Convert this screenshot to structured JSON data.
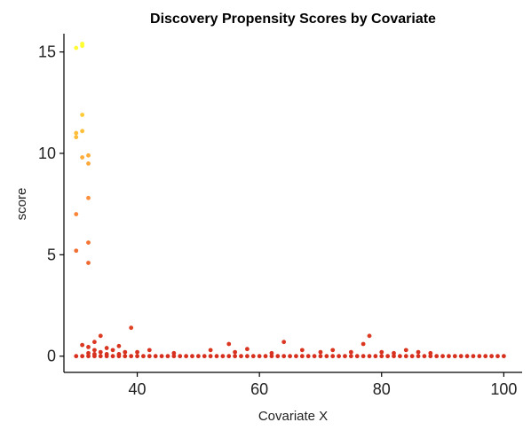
{
  "chart_data": {
    "type": "scatter",
    "title": "Discovery Propensity Scores by Covariate",
    "xlabel": "Covariate X",
    "ylabel": "score",
    "xlim": [
      28,
      103
    ],
    "ylim": [
      -0.8,
      15.9
    ],
    "x_ticks": [
      40,
      60,
      80,
      100
    ],
    "y_ticks": [
      0,
      5,
      10,
      15
    ],
    "grid": false,
    "legend": "none",
    "color_scale": {
      "low": "#d7301f",
      "mid": "#fd8d3c",
      "high": "#ffff33",
      "min": 0,
      "max": 15.4
    },
    "points": [
      {
        "x": 30,
        "y": 15.2
      },
      {
        "x": 31,
        "y": 15.3
      },
      {
        "x": 31,
        "y": 15.4
      },
      {
        "x": 31,
        "y": 11.9
      },
      {
        "x": 30,
        "y": 11.0
      },
      {
        "x": 30,
        "y": 10.8
      },
      {
        "x": 31,
        "y": 11.1
      },
      {
        "x": 31,
        "y": 9.8
      },
      {
        "x": 32,
        "y": 9.9
      },
      {
        "x": 32,
        "y": 9.5
      },
      {
        "x": 32,
        "y": 7.8
      },
      {
        "x": 30,
        "y": 7.0
      },
      {
        "x": 32,
        "y": 5.6
      },
      {
        "x": 30,
        "y": 5.2
      },
      {
        "x": 32,
        "y": 4.6
      },
      {
        "x": 39,
        "y": 1.4
      },
      {
        "x": 34,
        "y": 1.0
      },
      {
        "x": 78,
        "y": 1.0
      },
      {
        "x": 33,
        "y": 0.7
      },
      {
        "x": 55,
        "y": 0.6
      },
      {
        "x": 64,
        "y": 0.7
      },
      {
        "x": 77,
        "y": 0.6
      },
      {
        "x": 31,
        "y": 0.55
      },
      {
        "x": 37,
        "y": 0.5
      },
      {
        "x": 32,
        "y": 0.45
      },
      {
        "x": 35,
        "y": 0.4
      },
      {
        "x": 33,
        "y": 0.3
      },
      {
        "x": 36,
        "y": 0.3
      },
      {
        "x": 42,
        "y": 0.3
      },
      {
        "x": 52,
        "y": 0.3
      },
      {
        "x": 58,
        "y": 0.35
      },
      {
        "x": 67,
        "y": 0.3
      },
      {
        "x": 72,
        "y": 0.3
      },
      {
        "x": 84,
        "y": 0.3
      },
      {
        "x": 34,
        "y": 0.2
      },
      {
        "x": 38,
        "y": 0.2
      },
      {
        "x": 40,
        "y": 0.2
      },
      {
        "x": 46,
        "y": 0.15
      },
      {
        "x": 56,
        "y": 0.2
      },
      {
        "x": 62,
        "y": 0.15
      },
      {
        "x": 70,
        "y": 0.2
      },
      {
        "x": 75,
        "y": 0.2
      },
      {
        "x": 80,
        "y": 0.2
      },
      {
        "x": 82,
        "y": 0.15
      },
      {
        "x": 86,
        "y": 0.2
      },
      {
        "x": 88,
        "y": 0.15
      },
      {
        "x": 32,
        "y": 0.15
      },
      {
        "x": 33,
        "y": 0.1
      },
      {
        "x": 35,
        "y": 0.1
      },
      {
        "x": 37,
        "y": 0.1
      },
      {
        "x": 30,
        "y": 0
      },
      {
        "x": 31,
        "y": 0
      },
      {
        "x": 32,
        "y": 0
      },
      {
        "x": 33,
        "y": 0
      },
      {
        "x": 34,
        "y": 0
      },
      {
        "x": 35,
        "y": 0
      },
      {
        "x": 36,
        "y": 0
      },
      {
        "x": 37,
        "y": 0
      },
      {
        "x": 38,
        "y": 0
      },
      {
        "x": 39,
        "y": 0
      },
      {
        "x": 40,
        "y": 0
      },
      {
        "x": 41,
        "y": 0
      },
      {
        "x": 42,
        "y": 0
      },
      {
        "x": 43,
        "y": 0
      },
      {
        "x": 44,
        "y": 0
      },
      {
        "x": 45,
        "y": 0
      },
      {
        "x": 46,
        "y": 0
      },
      {
        "x": 47,
        "y": 0
      },
      {
        "x": 48,
        "y": 0
      },
      {
        "x": 49,
        "y": 0
      },
      {
        "x": 50,
        "y": 0
      },
      {
        "x": 51,
        "y": 0
      },
      {
        "x": 52,
        "y": 0
      },
      {
        "x": 53,
        "y": 0
      },
      {
        "x": 54,
        "y": 0
      },
      {
        "x": 55,
        "y": 0
      },
      {
        "x": 56,
        "y": 0
      },
      {
        "x": 57,
        "y": 0
      },
      {
        "x": 58,
        "y": 0
      },
      {
        "x": 59,
        "y": 0
      },
      {
        "x": 60,
        "y": 0
      },
      {
        "x": 61,
        "y": 0
      },
      {
        "x": 62,
        "y": 0
      },
      {
        "x": 63,
        "y": 0
      },
      {
        "x": 64,
        "y": 0
      },
      {
        "x": 65,
        "y": 0
      },
      {
        "x": 66,
        "y": 0
      },
      {
        "x": 67,
        "y": 0
      },
      {
        "x": 68,
        "y": 0
      },
      {
        "x": 69,
        "y": 0
      },
      {
        "x": 70,
        "y": 0
      },
      {
        "x": 71,
        "y": 0
      },
      {
        "x": 72,
        "y": 0
      },
      {
        "x": 73,
        "y": 0
      },
      {
        "x": 74,
        "y": 0
      },
      {
        "x": 75,
        "y": 0
      },
      {
        "x": 76,
        "y": 0
      },
      {
        "x": 77,
        "y": 0
      },
      {
        "x": 78,
        "y": 0
      },
      {
        "x": 79,
        "y": 0
      },
      {
        "x": 80,
        "y": 0
      },
      {
        "x": 81,
        "y": 0
      },
      {
        "x": 82,
        "y": 0
      },
      {
        "x": 83,
        "y": 0
      },
      {
        "x": 84,
        "y": 0
      },
      {
        "x": 85,
        "y": 0
      },
      {
        "x": 86,
        "y": 0
      },
      {
        "x": 87,
        "y": 0
      },
      {
        "x": 88,
        "y": 0
      },
      {
        "x": 89,
        "y": 0
      },
      {
        "x": 90,
        "y": 0
      },
      {
        "x": 91,
        "y": 0
      },
      {
        "x": 92,
        "y": 0
      },
      {
        "x": 93,
        "y": 0
      },
      {
        "x": 94,
        "y": 0
      },
      {
        "x": 95,
        "y": 0
      },
      {
        "x": 96,
        "y": 0
      },
      {
        "x": 97,
        "y": 0
      },
      {
        "x": 98,
        "y": 0
      },
      {
        "x": 99,
        "y": 0
      },
      {
        "x": 100,
        "y": 0
      }
    ]
  }
}
